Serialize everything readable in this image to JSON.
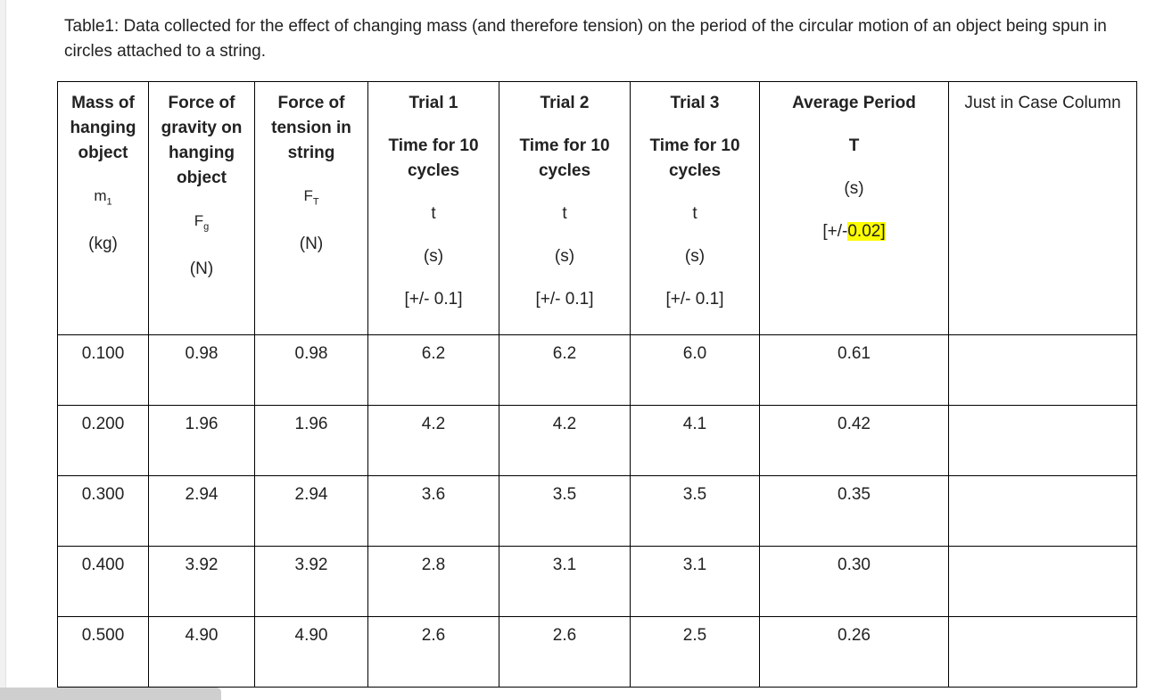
{
  "caption": "Table1: Data collected for the effect of changing mass (and therefore tension) on the period of the circular motion of an object being spun in circles attached to a string.",
  "headers": {
    "mass": {
      "title_1": "Mass of",
      "title_2": "hanging",
      "title_3": "object",
      "symbol": "m",
      "subscript": "1",
      "unit": "(kg)"
    },
    "gravity": {
      "title_1": "Force of",
      "title_2": "gravity on",
      "title_3": "hanging",
      "title_4": "object",
      "symbol": "F",
      "subscript": "g",
      "unit": "(N)"
    },
    "tension": {
      "title_1": "Force of",
      "title_2": "tension in",
      "title_3": "string",
      "symbol": "F",
      "subscript": "T",
      "unit": "(N)"
    },
    "trial1": {
      "title": "Trial 1",
      "sub_1": "Time for 10",
      "sub_2": "cycles",
      "symbol": "t",
      "unit": "(s)",
      "uncertainty": "[+/- 0.1]"
    },
    "trial2": {
      "title": "Trial 2",
      "sub_1": "Time for 10",
      "sub_2": "cycles",
      "symbol": "t",
      "unit": "(s)",
      "uncertainty": "[+/- 0.1]"
    },
    "trial3": {
      "title": "Trial 3",
      "sub_1": "Time for 10",
      "sub_2": "cycles",
      "symbol": "t",
      "unit": "(s)",
      "uncertainty": "[+/- 0.1]"
    },
    "average": {
      "title": "Average Period",
      "symbol": "T",
      "unit": "(s)",
      "unc_prefix": "[+/-",
      "unc_value": "0.02]"
    },
    "extra": {
      "title": "Just in Case Column"
    }
  },
  "rows": [
    {
      "mass": "0.100",
      "fg": "0.98",
      "ft": "0.98",
      "t1": "6.2",
      "t2": "6.2",
      "t3": "6.0",
      "avg": "0.61",
      "extra": ""
    },
    {
      "mass": "0.200",
      "fg": "1.96",
      "ft": "1.96",
      "t1": "4.2",
      "t2": "4.2",
      "t3": "4.1",
      "avg": "0.42",
      "extra": ""
    },
    {
      "mass": "0.300",
      "fg": "2.94",
      "ft": "2.94",
      "t1": "3.6",
      "t2": "3.5",
      "t3": "3.5",
      "avg": "0.35",
      "extra": ""
    },
    {
      "mass": "0.400",
      "fg": "3.92",
      "ft": "3.92",
      "t1": "2.8",
      "t2": "3.1",
      "t3": "3.1",
      "avg": "0.30",
      "extra": ""
    },
    {
      "mass": "0.500",
      "fg": "4.90",
      "ft": "4.90",
      "t1": "2.6",
      "t2": "2.6",
      "t3": "2.5",
      "avg": "0.26",
      "extra": ""
    }
  ],
  "colors": {
    "highlight": "#fdfd00",
    "border": "#000000",
    "text": "#222222"
  }
}
